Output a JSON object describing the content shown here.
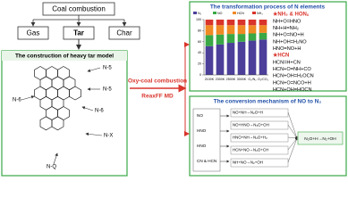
{
  "top": {
    "source": "Coal combustion",
    "products": [
      "Gas",
      "Tar",
      "Char"
    ]
  },
  "left_panel": {
    "title": "The construction of heavy tar model",
    "labels": [
      "N-6",
      "N-5",
      "N-5",
      "N-6",
      "N-X",
      "N-Q"
    ]
  },
  "process": {
    "condition": "Oxy-coal combustion",
    "method": "ReaxFF MD"
  },
  "n_transformation": {
    "title": "The transformation process of N elements",
    "chart": {
      "type": "bar",
      "stacked": true,
      "categories": [
        "2100K",
        "2300K",
        "2500K",
        "3000K",
        "O₂/N₂",
        "O₂/CO₂"
      ],
      "series": [
        {
          "name": "N₂",
          "color": "#4b3f9a",
          "values": [
            52,
            55,
            58,
            60,
            62,
            64
          ]
        },
        {
          "name": "NO",
          "color": "#39a845",
          "values": [
            20,
            18,
            16,
            14,
            13,
            12
          ]
        },
        {
          "name": "HCN",
          "color": "#f08a24",
          "values": [
            18,
            17,
            16,
            16,
            15,
            14
          ]
        },
        {
          "name": "NH₃",
          "color": "#d9342b",
          "values": [
            10,
            10,
            10,
            10,
            10,
            10
          ]
        }
      ],
      "ylim": [
        0,
        100
      ],
      "yticks": [
        0,
        20,
        40,
        60,
        80,
        100
      ]
    },
    "reactions": {
      "group1_title": "★NH₃ & HONₓ",
      "group1": [
        "NH+O=HNO",
        "NH+H=NH₂",
        "NH+O=NO+H",
        "NH+OH=H₂NO",
        "HNO=NO+H"
      ],
      "group2_title": "★HCN",
      "group2": [
        "HCN=H+CN",
        "HCN+O=NH+CO",
        "HCN+OH=H₂OCN",
        "HCN+O=NCO+H",
        "HCN+OH=HOCN"
      ]
    }
  },
  "no_conversion": {
    "title": "The conversion mechanism of NO to N₂",
    "sources": [
      "NO",
      "HNO",
      "HNO",
      "CN & HCN"
    ],
    "steps": [
      "NO+NH→N₂O+H",
      "NO+HNO→N₂O+OH",
      "HNO+NH→N₂O+H₂",
      "HCN+NO→N₂O+CH",
      "NH+NO→N₂+OH"
    ],
    "end": "N₂O+H→N₂+OH"
  }
}
